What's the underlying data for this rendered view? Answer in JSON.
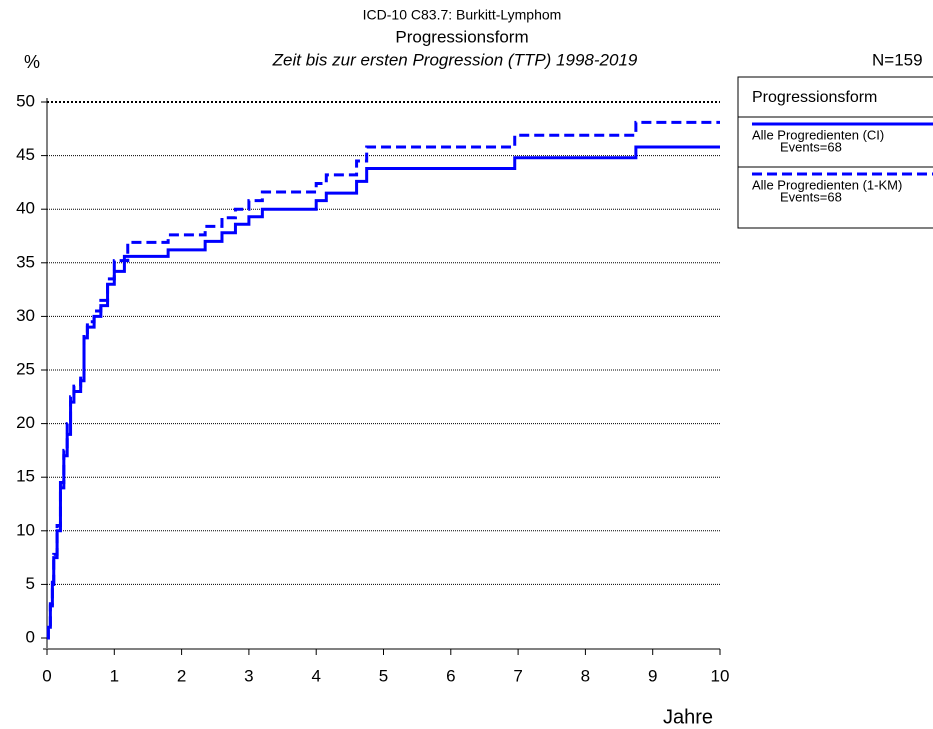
{
  "chart_data": {
    "type": "step",
    "title": "ICD-10 C83.7: Burkitt-Lymphom",
    "subtitle": "Progressionsform",
    "caption": "Zeit bis zur ersten Progression (TTP) 1998-2019",
    "y_label": "%",
    "x_label": "Jahre",
    "n_label": "N=159",
    "legend_title": "Progressionsform",
    "xlim": [
      0,
      10
    ],
    "ylim": [
      0,
      50
    ],
    "xticks": [
      0,
      1,
      2,
      3,
      4,
      5,
      6,
      7,
      8,
      9,
      10
    ],
    "yticks": [
      0,
      5,
      10,
      15,
      20,
      25,
      30,
      35,
      40,
      45,
      50
    ],
    "grid": true,
    "series": [
      {
        "name": "Alle Progredienten (CI)",
        "events": "Events=68",
        "color": "#0000ff",
        "dash": false,
        "x": [
          0,
          0.02,
          0.05,
          0.08,
          0.1,
          0.15,
          0.2,
          0.25,
          0.3,
          0.35,
          0.4,
          0.5,
          0.55,
          0.6,
          0.7,
          0.8,
          0.9,
          1.0,
          1.15,
          1.8,
          2.35,
          2.6,
          2.8,
          3.0,
          3.2,
          4.0,
          4.15,
          4.6,
          4.75,
          6.95,
          8.75,
          10.0
        ],
        "values": [
          0,
          1,
          3,
          5,
          7.5,
          10,
          14,
          17,
          19,
          22,
          23,
          24,
          28,
          29,
          30,
          31,
          33,
          34.2,
          35.6,
          36.2,
          37,
          37.8,
          38.6,
          39.3,
          40,
          40.8,
          41.5,
          42.6,
          43.8,
          44.8,
          45.8,
          45.8
        ]
      },
      {
        "name": "Alle Progredienten (1-KM)",
        "events": "Events=68",
        "color": "#0000ff",
        "dash": true,
        "x": [
          0,
          0.02,
          0.05,
          0.08,
          0.1,
          0.15,
          0.2,
          0.25,
          0.3,
          0.35,
          0.4,
          0.5,
          0.55,
          0.6,
          0.7,
          0.8,
          0.9,
          1.0,
          1.2,
          1.8,
          2.35,
          2.6,
          2.8,
          3.0,
          3.2,
          4.0,
          4.15,
          4.6,
          4.75,
          6.95,
          8.75,
          10.0
        ],
        "values": [
          0,
          1,
          3.2,
          5.2,
          7.8,
          10.5,
          14.5,
          17.5,
          20,
          22.5,
          23.5,
          24.5,
          28.5,
          29.5,
          30.5,
          31.5,
          33.5,
          35.2,
          36.9,
          37.6,
          38.4,
          39.2,
          40,
          40.8,
          41.6,
          42.4,
          43.2,
          44.5,
          45.8,
          46.9,
          48.1,
          48.1
        ]
      }
    ]
  }
}
